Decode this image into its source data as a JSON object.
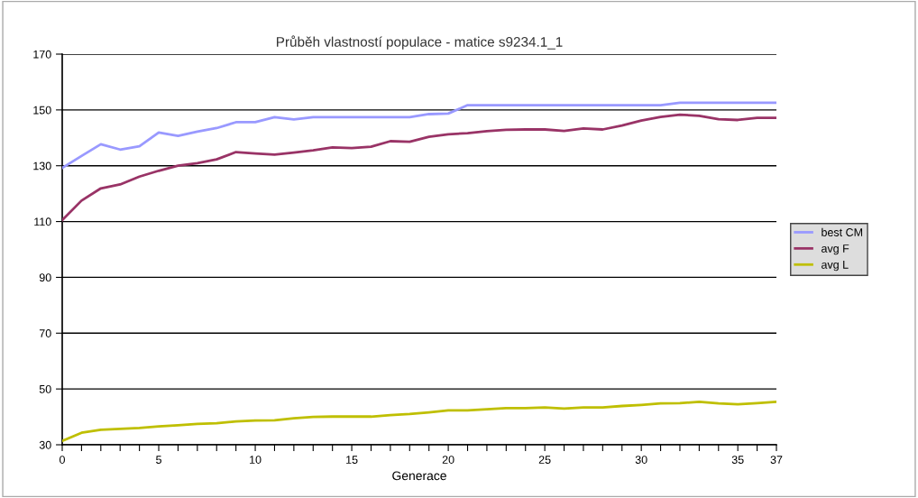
{
  "chart_data": {
    "type": "line",
    "title": "Průběh vlastností populace - matice s9234.1_1",
    "xlabel": "Generace",
    "x": [
      0,
      1,
      2,
      3,
      4,
      5,
      6,
      7,
      8,
      9,
      10,
      11,
      12,
      13,
      14,
      15,
      16,
      17,
      18,
      19,
      20,
      21,
      22,
      23,
      24,
      25,
      26,
      27,
      28,
      29,
      30,
      31,
      32,
      33,
      34,
      35,
      36,
      37
    ],
    "series": [
      {
        "name": "best CM",
        "color": "#9999ff",
        "values": [
          129.2,
          133.5,
          137.7,
          135.8,
          137,
          141.9,
          140.7,
          142.2,
          143.5,
          145.6,
          145.6,
          147.4,
          146.6,
          147.4,
          147.4,
          147.4,
          147.4,
          147.4,
          147.4,
          148.5,
          148.7,
          151.7,
          151.7,
          151.7,
          151.7,
          151.7,
          151.7,
          151.7,
          151.7,
          151.7,
          151.7,
          151.7,
          152.6,
          152.6,
          152.6,
          152.6,
          152.6,
          152.6
        ]
      },
      {
        "name": "avg F",
        "color": "#993366",
        "values": [
          110.5,
          117.5,
          121.9,
          123.3,
          126.1,
          128.2,
          130,
          130.9,
          132.3,
          134.9,
          134.4,
          134,
          134.7,
          135.5,
          136.6,
          136.3,
          136.8,
          138.8,
          138.6,
          140.4,
          141.3,
          141.7,
          142.4,
          142.9,
          143,
          143,
          142.5,
          143.4,
          143,
          144.4,
          146.2,
          147.5,
          148.3,
          147.9,
          146.7,
          146.4,
          147.2,
          147.2
        ]
      },
      {
        "name": "avg L",
        "color": "#bfbf00",
        "values": [
          31.4,
          34.3,
          35.4,
          35.7,
          36,
          36.6,
          37,
          37.5,
          37.7,
          38.4,
          38.7,
          38.8,
          39.5,
          40,
          40.1,
          40.1,
          40.1,
          40.6,
          41,
          41.6,
          42.3,
          42.3,
          42.7,
          43.1,
          43.1,
          43.4,
          43,
          43.4,
          43.4,
          43.9,
          44.3,
          44.8,
          44.9,
          45.4,
          44.8,
          44.5,
          44.9,
          45.4
        ]
      }
    ],
    "xlim": [
      0,
      37
    ],
    "ylim": [
      30,
      170
    ],
    "xticks": [
      0,
      {
        "value": 1,
        "label": null
      },
      {
        "value": 2,
        "label": null
      },
      {
        "value": 3,
        "label": null
      },
      {
        "value": 4,
        "label": null
      },
      5,
      {
        "value": 6,
        "label": null
      },
      {
        "value": 7,
        "label": null
      },
      {
        "value": 8,
        "label": null
      },
      {
        "value": 9,
        "label": null
      },
      10,
      {
        "value": 11,
        "label": null
      },
      {
        "value": 12,
        "label": null
      },
      {
        "value": 13,
        "label": null
      },
      {
        "value": 14,
        "label": null
      },
      15,
      {
        "value": 16,
        "label": null
      },
      {
        "value": 17,
        "label": null
      },
      {
        "value": 18,
        "label": null
      },
      {
        "value": 19,
        "label": null
      },
      20,
      {
        "value": 21,
        "label": null
      },
      {
        "value": 22,
        "label": null
      },
      {
        "value": 23,
        "label": null
      },
      {
        "value": 24,
        "label": null
      },
      25,
      {
        "value": 26,
        "label": null
      },
      {
        "value": 27,
        "label": null
      },
      {
        "value": 28,
        "label": null
      },
      {
        "value": 29,
        "label": null
      },
      30,
      {
        "value": 31,
        "label": null
      },
      {
        "value": 32,
        "label": null
      },
      {
        "value": 33,
        "label": null
      },
      {
        "value": 34,
        "label": null
      },
      35,
      {
        "value": 36,
        "label": null
      },
      37
    ],
    "yticks": [
      30,
      50,
      70,
      90,
      110,
      130,
      150,
      170
    ],
    "grid": "y",
    "legend": "right",
    "marker": "none",
    "line_style": "solid"
  }
}
